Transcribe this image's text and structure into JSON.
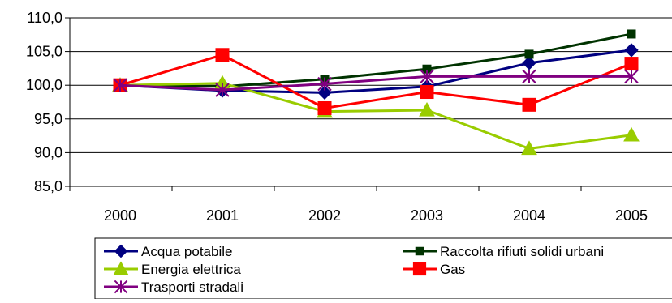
{
  "chart_data": {
    "type": "line",
    "title": "",
    "xlabel": "",
    "ylabel": "",
    "categories": [
      "2000",
      "2001",
      "2002",
      "2003",
      "2004",
      "2005"
    ],
    "ylim": [
      85,
      110
    ],
    "yticks": [
      85,
      90,
      95,
      100,
      105,
      110
    ],
    "ytick_labels": [
      "85,0",
      "90,0",
      "95,0",
      "100,0",
      "105,0",
      "110,0"
    ],
    "grid": "horizontal",
    "legend_position": "bottom",
    "series": [
      {
        "name": "Acqua potabile",
        "values": [
          100.0,
          99.2,
          98.9,
          99.8,
          103.3,
          105.2
        ],
        "color": "#000080",
        "marker": "diamond"
      },
      {
        "name": "Raccolta rifiuti solidi urbani",
        "values": [
          100.0,
          99.8,
          100.9,
          102.4,
          104.6,
          107.6
        ],
        "color": "#003300",
        "marker": "square-small"
      },
      {
        "name": "Energia elettrica",
        "values": [
          100.0,
          100.3,
          96.1,
          96.3,
          90.6,
          92.6
        ],
        "color": "#99CC00",
        "marker": "triangle"
      },
      {
        "name": "Gas",
        "values": [
          100.0,
          104.5,
          96.6,
          99.0,
          97.1,
          103.2
        ],
        "color": "#FF0000",
        "marker": "square"
      },
      {
        "name": "Trasporti stradali",
        "values": [
          100.0,
          99.3,
          100.2,
          101.3,
          101.3,
          101.3
        ],
        "color": "#800080",
        "marker": "star"
      }
    ]
  }
}
